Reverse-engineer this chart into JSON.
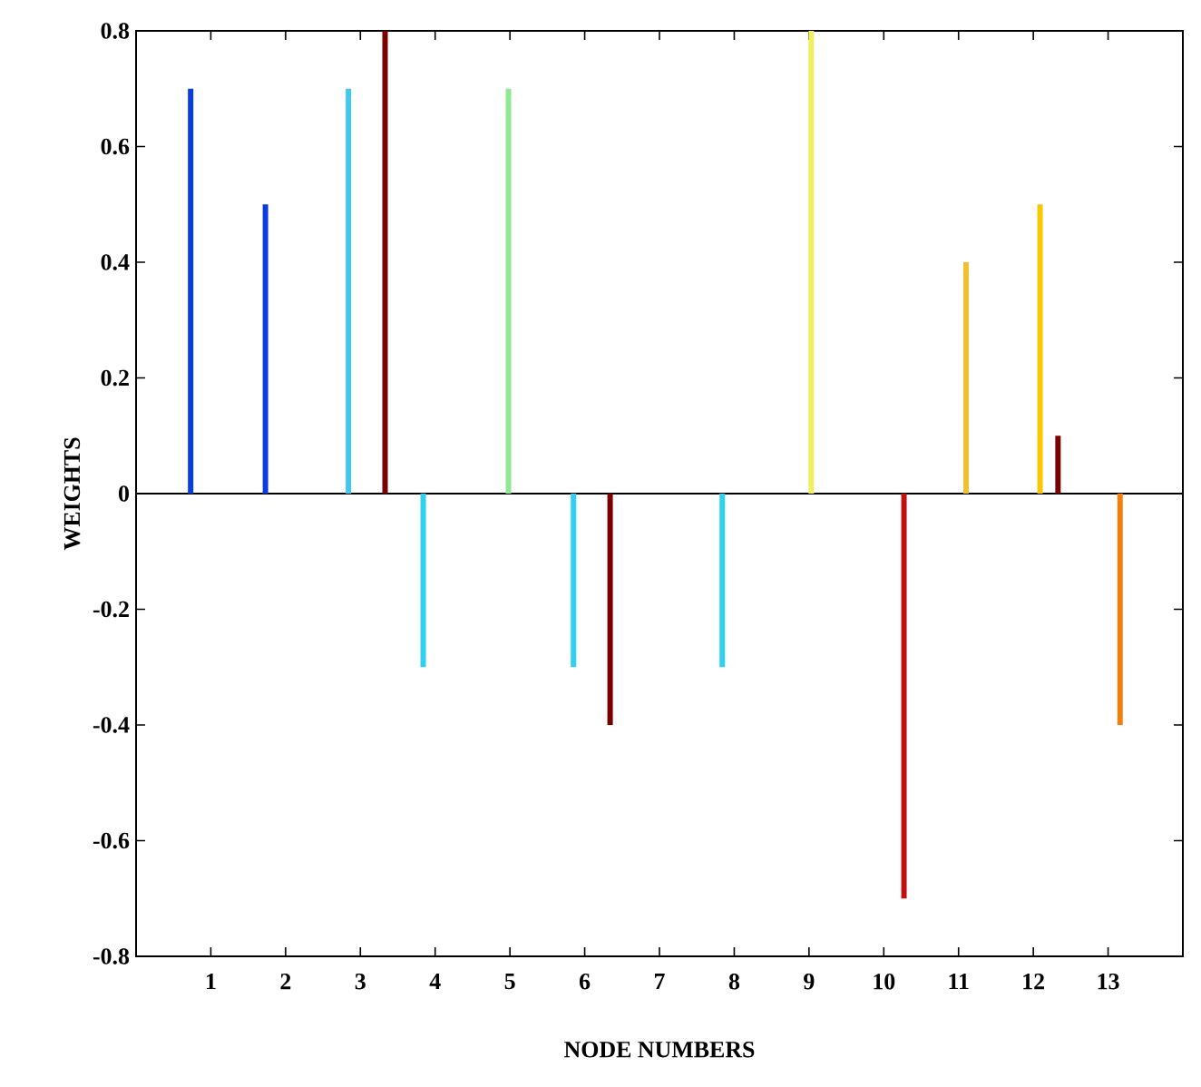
{
  "chart_data": {
    "type": "bar",
    "xlabel": "NODE NUMBERS",
    "ylabel": "WEIGHTS",
    "x": [
      0.73,
      1.73,
      2.84,
      3.33,
      3.84,
      4.98,
      5.85,
      6.34,
      7.84,
      9.03,
      10.27,
      11.1,
      12.09,
      12.33,
      13.16
    ],
    "values": [
      0.7,
      0.5,
      0.7,
      0.8,
      -0.3,
      0.7,
      -0.3,
      -0.4,
      -0.3,
      0.8,
      -0.7,
      0.4,
      0.5,
      0.1,
      -0.4
    ],
    "colors": [
      "#0a3ce0",
      "#0a3ce0",
      "#40c8f0",
      "#7a0000",
      "#30d0f0",
      "#90e890",
      "#30d0f0",
      "#7a0000",
      "#30d0f0",
      "#f0f060",
      "#c01010",
      "#f0c030",
      "#f8c800",
      "#7a0000",
      "#f08010"
    ],
    "xlim": [
      0,
      14
    ],
    "ylim": [
      -0.8,
      0.8
    ],
    "xticks": [
      1,
      2,
      3,
      4,
      5,
      6,
      7,
      8,
      9,
      10,
      11,
      12,
      13
    ],
    "yticks": [
      -0.8,
      -0.6,
      -0.4,
      -0.2,
      0,
      0.2,
      0.4,
      0.6,
      0.8
    ],
    "ref_lines": [
      {
        "axis": "y",
        "value": 0,
        "color": "#000000"
      }
    ],
    "marker": "none"
  }
}
